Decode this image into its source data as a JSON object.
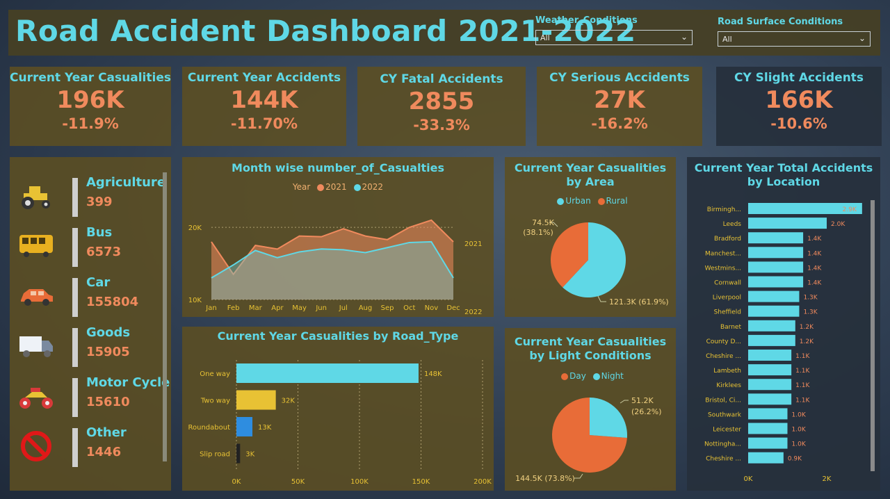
{
  "header": {
    "title": "Road Accident Dashboard 2021-2022",
    "weather_label": "Weather_Conditions",
    "weather_value": "All",
    "surface_label": "Road Surface Conditions",
    "surface_value": "All"
  },
  "kpis": [
    {
      "title": "Current Year Casualities",
      "value": "196K",
      "change": "-11.9%"
    },
    {
      "title": "Current Year Accidents",
      "value": "144K",
      "change": "-11.70%"
    },
    {
      "title": "CY Fatal Accidents",
      "value": "2855",
      "change": "-33.3%"
    },
    {
      "title": "CY Serious Accidents",
      "value": "27K",
      "change": "-16.2%"
    },
    {
      "title": "CY Slight Accidents",
      "value": "166K",
      "change": "-10.6%"
    }
  ],
  "vehicles": [
    {
      "name": "Agriculture",
      "value": "399",
      "icon": "tractor-icon"
    },
    {
      "name": "Bus",
      "value": "6573",
      "icon": "bus-icon"
    },
    {
      "name": "Car",
      "value": "155804",
      "icon": "car-icon"
    },
    {
      "name": "Goods",
      "value": "15905",
      "icon": "truck-icon"
    },
    {
      "name": "Motor Cycle",
      "value": "15610",
      "icon": "motorcycle-icon"
    },
    {
      "name": "Other",
      "value": "1446",
      "icon": "prohibited-icon"
    }
  ],
  "colors": {
    "orange": "#f08a5d",
    "cyan": "#5fd8e6",
    "yellow": "#e8c234",
    "blue": "#2e8de0",
    "dark": "#222222",
    "rural": "#e86c38"
  },
  "chart_data": [
    {
      "id": "monthly",
      "type": "area",
      "title": "Month wise number_of_Casualties",
      "legend_title": "Year",
      "categories": [
        "Jan",
        "Feb",
        "Mar",
        "Apr",
        "May",
        "Jun",
        "Jul",
        "Aug",
        "Sep",
        "Oct",
        "Nov",
        "Dec"
      ],
      "series": [
        {
          "name": "2021",
          "end_label": "2021",
          "values": [
            18000,
            13500,
            17500,
            17000,
            18800,
            18700,
            19800,
            18800,
            18300,
            20000,
            21000,
            18000
          ]
        },
        {
          "name": "2022",
          "end_label": "2022",
          "values": [
            13000,
            14800,
            16800,
            15800,
            16600,
            17000,
            16900,
            16500,
            17200,
            17900,
            18000,
            13000
          ]
        }
      ],
      "yticks": [
        "10K",
        "20K"
      ],
      "ylim": [
        10000,
        23000
      ]
    },
    {
      "id": "road_type",
      "type": "bar",
      "title": "Current Year Casualities by Road_Type",
      "categories": [
        "One way",
        "Two way",
        "Roundabout",
        "Slip road"
      ],
      "values": [
        148,
        32,
        13,
        3
      ],
      "labels": [
        "148K",
        "32K",
        "13K",
        "3K"
      ],
      "xticks": [
        "0K",
        "50K",
        "100K",
        "150K",
        "200K"
      ],
      "xlim": [
        0,
        200
      ]
    },
    {
      "id": "area",
      "type": "pie",
      "title": "Current Year Casualities by Area",
      "slices": [
        {
          "name": "Urban",
          "value": 121.3,
          "label": "121.3K (61.9%)"
        },
        {
          "name": "Rural",
          "value": 74.5,
          "label_value": "74.5K",
          "label_pct": "(38.1%)"
        }
      ]
    },
    {
      "id": "light",
      "type": "pie",
      "title": "Current Year Casualities by Light Conditions",
      "slices": [
        {
          "name": "Day",
          "value": 144.5,
          "label": "144.5K (73.8%)"
        },
        {
          "name": "Night",
          "value": 51.2,
          "label_value": "51.2K",
          "label_pct": "(26.2%)"
        }
      ]
    },
    {
      "id": "location",
      "type": "bar",
      "title": "Current Year Total Accidents by Location",
      "categories": [
        "Birmingh...",
        "Leeds",
        "Bradford",
        "Manchest...",
        "Westmins...",
        "Cornwall",
        "Liverpool",
        "Sheffield",
        "Barnet",
        "County D...",
        "Cheshire ...",
        "Lambeth",
        "Kirklees",
        "Bristol, Ci...",
        "Southwark",
        "Leicester",
        "Nottingha...",
        "Cheshire ..."
      ],
      "values": [
        2.9,
        2.0,
        1.4,
        1.4,
        1.4,
        1.4,
        1.3,
        1.3,
        1.2,
        1.2,
        1.1,
        1.1,
        1.1,
        1.1,
        1.0,
        1.0,
        1.0,
        0.9
      ],
      "labels": [
        "2.9K",
        "2.0K",
        "1.4K",
        "1.4K",
        "1.4K",
        "1.4K",
        "1.3K",
        "1.3K",
        "1.2K",
        "1.2K",
        "1.1K",
        "1.1K",
        "1.1K",
        "1.1K",
        "1.0K",
        "1.0K",
        "1.0K",
        "0.9K"
      ],
      "xticks": [
        "0K",
        "2K"
      ],
      "xlim": [
        0,
        3
      ]
    }
  ]
}
